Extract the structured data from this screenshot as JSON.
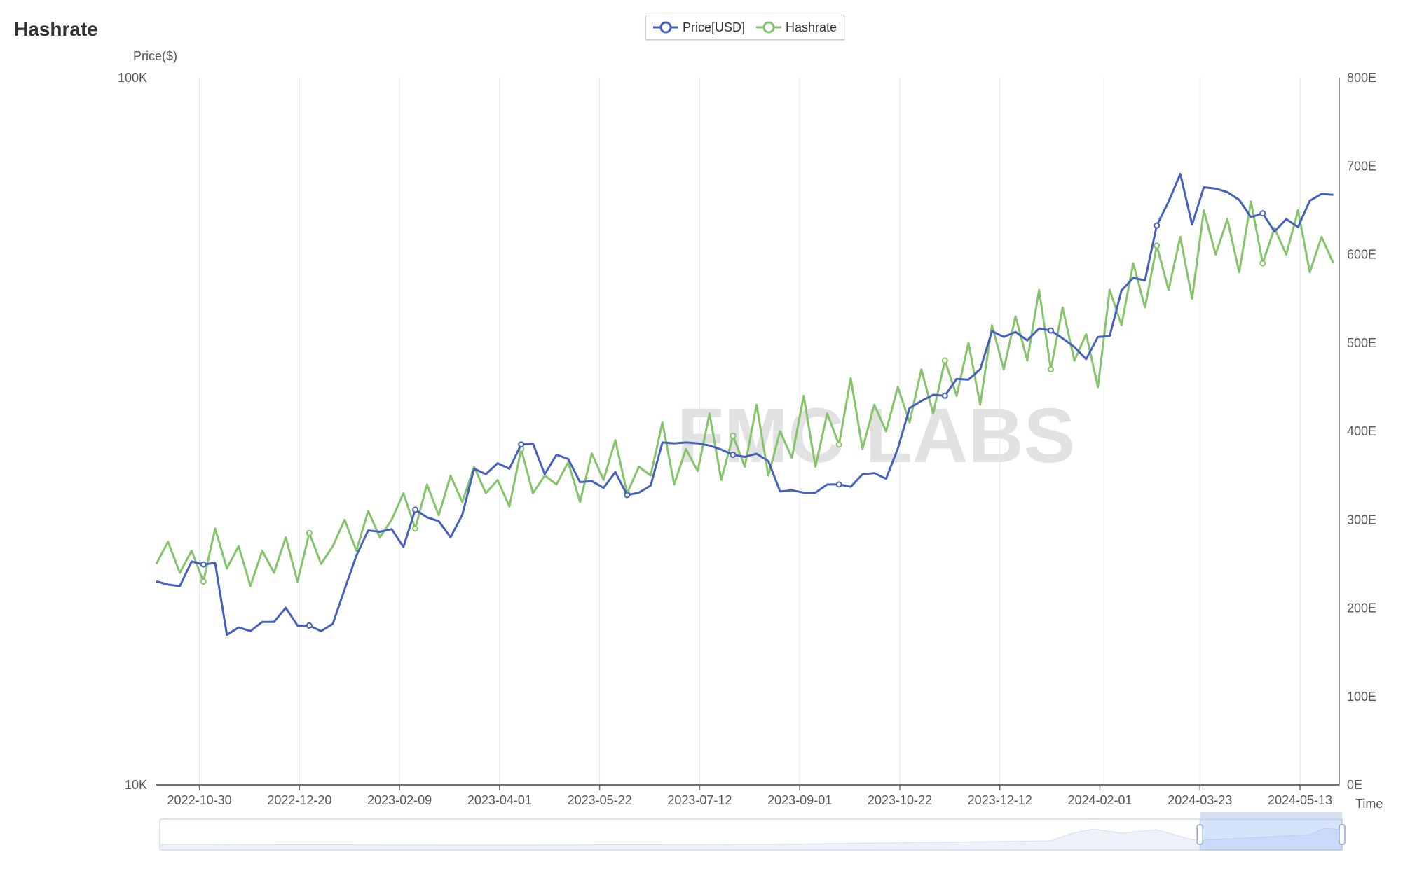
{
  "title": "Hashrate",
  "watermark": "FMC LABS",
  "legend": [
    {
      "name": "Price[USD]",
      "color": "#4661bd"
    },
    {
      "name": "Hashrate",
      "color": "#85c46b"
    }
  ],
  "chart_data": {
    "type": "line",
    "xlabel": "Time",
    "ylabel_left": "Price($)",
    "ylabel_right": "",
    "y_left_scale": "log",
    "y_left_range": [
      10000,
      100000
    ],
    "y_left_ticks": [
      "10K",
      "100K"
    ],
    "y_right_range": [
      0,
      800
    ],
    "y_right_ticks": [
      "0E",
      "100E",
      "200E",
      "300E",
      "400E",
      "500E",
      "600E",
      "700E",
      "800E"
    ],
    "x_range": [
      "2022-10-08",
      "2024-06-02"
    ],
    "x_ticks": [
      "2022-10-30",
      "2022-12-20",
      "2023-02-09",
      "2023-04-01",
      "2023-05-22",
      "2023-07-12",
      "2023-09-01",
      "2023-10-22",
      "2023-12-12",
      "2024-02-01",
      "2024-03-23",
      "2024-05-13"
    ],
    "grid": "vertical",
    "legend_position": "top-center",
    "x": [
      "2022-10-08",
      "2022-10-14",
      "2022-10-20",
      "2022-10-26",
      "2022-11-01",
      "2022-11-07",
      "2022-11-13",
      "2022-11-19",
      "2022-11-25",
      "2022-12-01",
      "2022-12-07",
      "2022-12-13",
      "2022-12-19",
      "2022-12-25",
      "2022-12-31",
      "2023-01-06",
      "2023-01-12",
      "2023-01-18",
      "2023-01-24",
      "2023-01-30",
      "2023-02-05",
      "2023-02-11",
      "2023-02-17",
      "2023-02-23",
      "2023-03-01",
      "2023-03-07",
      "2023-03-13",
      "2023-03-19",
      "2023-03-25",
      "2023-03-31",
      "2023-04-06",
      "2023-04-12",
      "2023-04-18",
      "2023-04-24",
      "2023-04-30",
      "2023-05-06",
      "2023-05-12",
      "2023-05-18",
      "2023-05-24",
      "2023-05-30",
      "2023-06-05",
      "2023-06-11",
      "2023-06-17",
      "2023-06-23",
      "2023-06-29",
      "2023-07-05",
      "2023-07-11",
      "2023-07-17",
      "2023-07-23",
      "2023-07-29",
      "2023-08-04",
      "2023-08-10",
      "2023-08-16",
      "2023-08-22",
      "2023-08-28",
      "2023-09-03",
      "2023-09-09",
      "2023-09-15",
      "2023-09-21",
      "2023-09-27",
      "2023-10-03",
      "2023-10-09",
      "2023-10-15",
      "2023-10-21",
      "2023-10-27",
      "2023-11-02",
      "2023-11-08",
      "2023-11-14",
      "2023-11-20",
      "2023-11-26",
      "2023-12-02",
      "2023-12-08",
      "2023-12-14",
      "2023-12-20",
      "2023-12-26",
      "2024-01-01",
      "2024-01-07",
      "2024-01-13",
      "2024-01-19",
      "2024-01-25",
      "2024-01-31",
      "2024-02-06",
      "2024-02-12",
      "2024-02-18",
      "2024-02-24",
      "2024-03-01",
      "2024-03-07",
      "2024-03-13",
      "2024-03-19",
      "2024-03-25",
      "2024-03-31",
      "2024-04-06",
      "2024-04-12",
      "2024-04-18",
      "2024-04-24",
      "2024-04-30",
      "2024-05-06",
      "2024-05-12",
      "2024-05-18",
      "2024-05-24",
      "2024-05-30"
    ],
    "series": [
      {
        "name": "Price[USD]",
        "axis": "left",
        "color": "#4661bd",
        "values": [
          19400,
          19200,
          19100,
          20700,
          20500,
          20600,
          16300,
          16700,
          16500,
          17000,
          17000,
          17800,
          16800,
          16800,
          16500,
          16900,
          18900,
          21100,
          22900,
          22800,
          23000,
          21700,
          24500,
          23900,
          23600,
          22400,
          24100,
          28000,
          27500,
          28500,
          28000,
          30300,
          30400,
          27500,
          29300,
          28900,
          26800,
          26900,
          26300,
          27700,
          25700,
          25900,
          26500,
          30500,
          30400,
          30500,
          30400,
          30200,
          29800,
          29300,
          29100,
          29400,
          28700,
          26000,
          26100,
          25900,
          25900,
          26600,
          26600,
          26400,
          27500,
          27600,
          27100,
          29900,
          34100,
          34900,
          35600,
          35500,
          37500,
          37400,
          38700,
          43800,
          43000,
          43700,
          42500,
          44200,
          43900,
          42800,
          41600,
          40000,
          43000,
          43100,
          50000,
          52100,
          51700,
          61800,
          66800,
          73100,
          62000,
          70000,
          69700,
          68900,
          67200,
          63500,
          64300,
          60600,
          63100,
          61500,
          67000,
          68500,
          68300
        ]
      },
      {
        "name": "Hashrate",
        "axis": "right",
        "color": "#85c46b",
        "values": [
          250,
          275,
          240,
          265,
          230,
          290,
          245,
          270,
          225,
          265,
          240,
          280,
          230,
          285,
          250,
          270,
          300,
          265,
          310,
          280,
          300,
          330,
          290,
          340,
          305,
          350,
          320,
          360,
          330,
          345,
          315,
          380,
          330,
          350,
          340,
          365,
          320,
          375,
          345,
          390,
          330,
          360,
          350,
          410,
          340,
          380,
          355,
          420,
          345,
          395,
          360,
          430,
          350,
          400,
          370,
          440,
          360,
          420,
          385,
          460,
          380,
          430,
          400,
          450,
          410,
          470,
          420,
          480,
          440,
          500,
          430,
          520,
          470,
          530,
          480,
          560,
          470,
          540,
          480,
          510,
          450,
          560,
          520,
          590,
          540,
          610,
          560,
          620,
          550,
          650,
          600,
          640,
          580,
          660,
          590,
          630,
          600,
          650,
          580,
          620,
          590
        ]
      }
    ],
    "zoom_window": {
      "start": "2024-03-23",
      "end": "2024-06-02"
    }
  }
}
